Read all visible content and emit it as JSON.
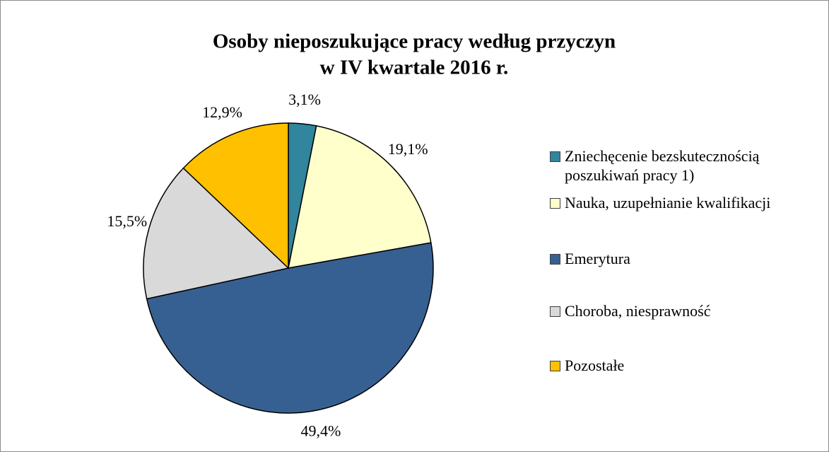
{
  "chart_data": {
    "type": "pie",
    "title": [
      "Osoby nieposzukujące pracy według przyczyn",
      "w IV kwartale 2016 r."
    ],
    "categories": [
      "Zniechęcenie bezskutecznością poszukiwań pracy 1)",
      "Nauka, uzupełnianie kwalifikacji",
      "Emerytura",
      "Choroba, niesprawność",
      "Pozostałe"
    ],
    "values": [
      3.1,
      19.1,
      49.4,
      15.5,
      12.9
    ],
    "value_labels": [
      "3,1%",
      "19,1%",
      "49,4%",
      "15,5%",
      "12,9%"
    ],
    "colors": [
      "#31859c",
      "#ffffcc",
      "#376092",
      "#d9d9d9",
      "#ffc000"
    ],
    "legend": "right"
  }
}
